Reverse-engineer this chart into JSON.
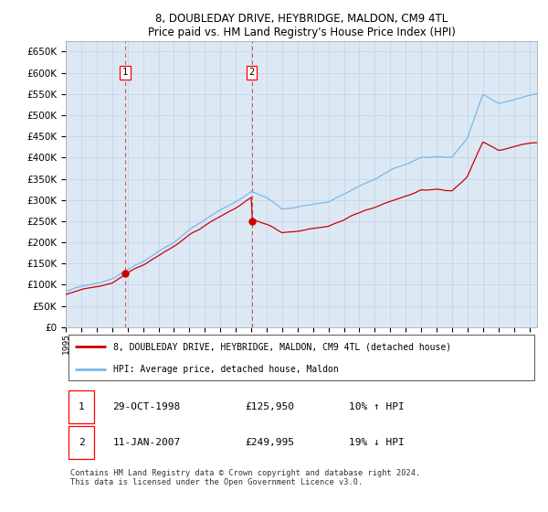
{
  "title": "8, DOUBLEDAY DRIVE, HEYBRIDGE, MALDON, CM9 4TL",
  "subtitle": "Price paid vs. HM Land Registry's House Price Index (HPI)",
  "legend_line1": "8, DOUBLEDAY DRIVE, HEYBRIDGE, MALDON, CM9 4TL (detached house)",
  "legend_line2": "HPI: Average price, detached house, Maldon",
  "annotation1_date": "29-OCT-1998",
  "annotation1_price": "£125,950",
  "annotation1_hpi": "10% ↑ HPI",
  "annotation2_date": "11-JAN-2007",
  "annotation2_price": "£249,995",
  "annotation2_hpi": "19% ↓ HPI",
  "footer": "Contains HM Land Registry data © Crown copyright and database right 2024.\nThis data is licensed under the Open Government Licence v3.0.",
  "sale1_year": 1998.83,
  "sale1_value": 125950,
  "sale2_year": 2007.03,
  "sale2_value": 249995,
  "hpi_color": "#7ab8e8",
  "price_color": "#cc0000",
  "dashed_color": "#dd6666",
  "background_color": "#dde8f5",
  "ylim_max": 675000,
  "yticks": [
    0,
    50000,
    100000,
    150000,
    200000,
    250000,
    300000,
    350000,
    400000,
    450000,
    500000,
    550000,
    600000,
    650000
  ],
  "ytick_labels": [
    "£0",
    "£50K",
    "£100K",
    "£150K",
    "£200K",
    "£250K",
    "£300K",
    "£350K",
    "£400K",
    "£450K",
    "£500K",
    "£550K",
    "£600K",
    "£650K"
  ],
  "xlim_start": 1995.0,
  "xlim_end": 2025.5,
  "xtick_years": [
    1995,
    1996,
    1997,
    1998,
    1999,
    2000,
    2001,
    2002,
    2003,
    2004,
    2005,
    2006,
    2007,
    2008,
    2009,
    2010,
    2011,
    2012,
    2013,
    2014,
    2015,
    2016,
    2017,
    2018,
    2019,
    2020,
    2021,
    2022,
    2023,
    2024,
    2025
  ]
}
